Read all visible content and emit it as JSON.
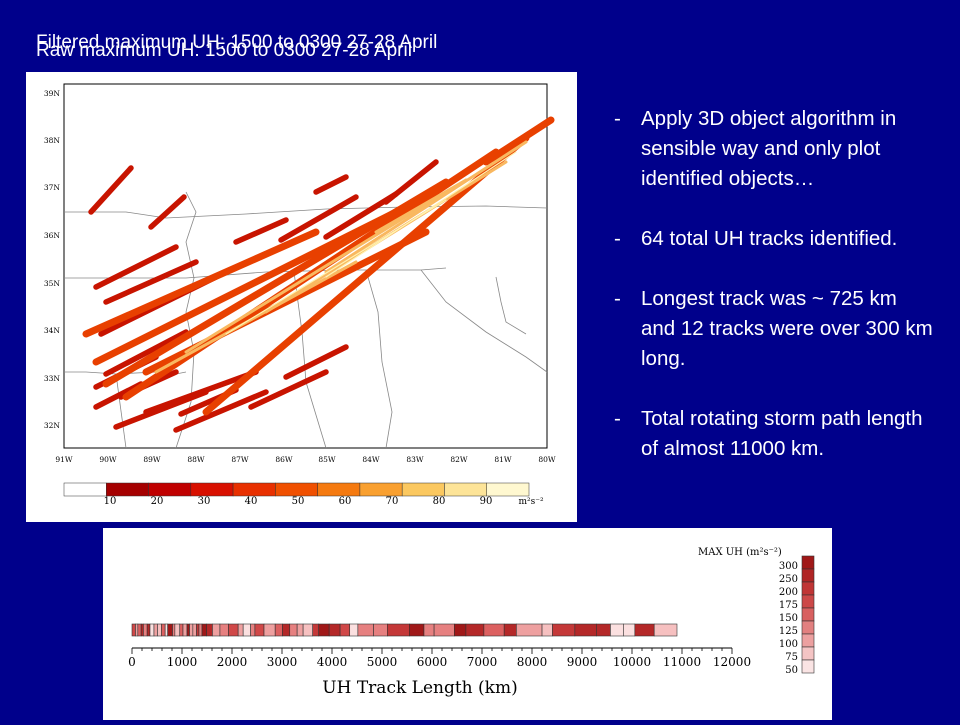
{
  "titles": {
    "filtered": "Filtered maximum UH: 1500 to 0300 27-28 April",
    "raw": "Raw maximum UH: 1500 to 0300 27-28 April"
  },
  "map": {
    "lat_labels": [
      "39N",
      "38N",
      "37N",
      "36N",
      "35N",
      "34N",
      "33N",
      "32N"
    ],
    "lon_labels": [
      "91W",
      "90W",
      "89W",
      "88W",
      "87W",
      "86W",
      "85W",
      "84W",
      "83W",
      "82W",
      "81W",
      "80W"
    ],
    "colorbar": {
      "ticks": [
        "10",
        "20",
        "30",
        "40",
        "50",
        "60",
        "70",
        "80",
        "90"
      ],
      "units": "m²s⁻²",
      "colors": [
        "#ffffff",
        "#a50000",
        "#c00000",
        "#d81000",
        "#e83000",
        "#f05000",
        "#f57a10",
        "#f9a030",
        "#fbc860",
        "#fde498",
        "#fff8d0"
      ]
    }
  },
  "bullets": [
    "Apply 3D object algorithm in sensible way and only plot identified objects…",
    "64 total UH tracks identified.",
    "Longest track was ~ 725 km and 12 tracks were over 300 km long.",
    "Total rotating storm path length of almost 11000 km."
  ],
  "track_chart": {
    "xlabel": "UH Track Length (km)",
    "x_ticks": [
      "0",
      "1000",
      "2000",
      "3000",
      "4000",
      "5000",
      "6000",
      "7000",
      "8000",
      "9000",
      "10000",
      "11000",
      "12000"
    ],
    "x_range": [
      0,
      12000
    ],
    "total_length_km": 10900,
    "legend_title": "MAX UH (m²s⁻²)",
    "legend_levels": [
      "300",
      "250",
      "200",
      "175",
      "150",
      "125",
      "100",
      "75",
      "50"
    ]
  }
}
